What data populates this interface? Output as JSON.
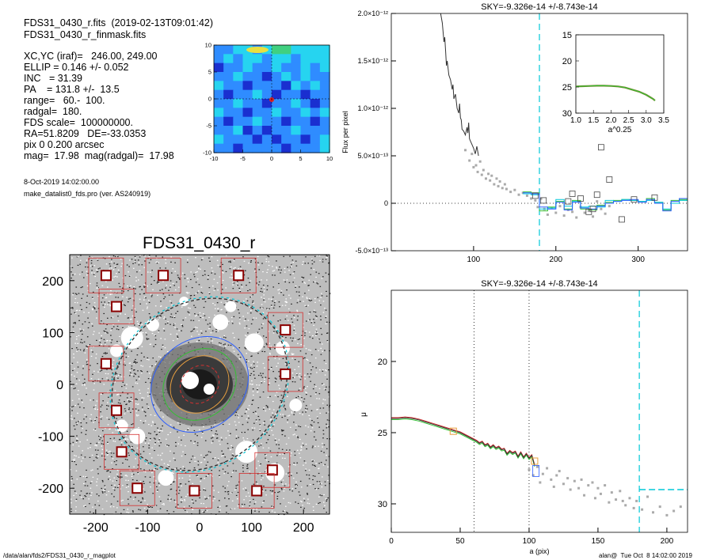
{
  "header": {
    "lines": [
      "FDS31_0430_r.fits  (2019-02-13T09:01:42)",
      "FDS31_0430_r_finmask.fits",
      "XC,YC (iraf)=   246.00, 249.00",
      "ELLIP = 0.146 +/- 0.052",
      "INC   = 31.39",
      "PA    = 131.8 +/-  13.5",
      "range=   60.-  100.",
      "radgal=  180.",
      "FDS scale=  100000000.",
      "RA=51.8209   DE=-33.0353",
      "pix 0 0.200 arcsec",
      "mag=  17.98  mag(radgal)=  17.98"
    ],
    "date": "8-Oct-2019 14:02:00.00",
    "program": "make_datalist0_fds.pro (ver. AS240919)"
  },
  "footer": {
    "path": "/data/alan/fds2/FDS31_0430_r_magplot",
    "stamp": "alan@  Tue Oct  8 14:02:00 2019"
  },
  "colors": {
    "dark_curve": "#333333",
    "cyan": "#00c8d8",
    "green": "#34c034",
    "blue": "#2a5cff",
    "orange": "#e8a040",
    "red": "#d43030",
    "gray_points": "#aaaaaa"
  },
  "chart_data": [
    {
      "id": "contour_map",
      "type": "heatmap",
      "title": "",
      "xlim": [
        -10,
        10
      ],
      "ylim": [
        -10,
        10
      ],
      "xticks": [
        "-10",
        "-5",
        "0",
        "5",
        "10"
      ],
      "yticks": [
        "-10",
        "-5",
        "0",
        "5",
        "10"
      ],
      "grid": [
        [
          1,
          1,
          2,
          2,
          1,
          2,
          3,
          3,
          2,
          2,
          2,
          2
        ],
        [
          1,
          2,
          1,
          2,
          2,
          1,
          2,
          2,
          1,
          2,
          2,
          2
        ],
        [
          0,
          1,
          1,
          2,
          1,
          1,
          2,
          1,
          1,
          2,
          1,
          2
        ],
        [
          1,
          1,
          2,
          1,
          1,
          0,
          1,
          2,
          1,
          2,
          1,
          1
        ],
        [
          2,
          1,
          1,
          0,
          1,
          1,
          1,
          0,
          2,
          1,
          2,
          1
        ],
        [
          1,
          0,
          1,
          1,
          2,
          1,
          0,
          1,
          1,
          0,
          1,
          1
        ],
        [
          1,
          1,
          2,
          1,
          1,
          0,
          1,
          1,
          2,
          1,
          0,
          1
        ],
        [
          2,
          1,
          1,
          0,
          1,
          1,
          2,
          1,
          1,
          2,
          1,
          2
        ],
        [
          1,
          0,
          1,
          1,
          2,
          1,
          1,
          0,
          1,
          1,
          0,
          1
        ],
        [
          1,
          1,
          2,
          0,
          1,
          0,
          1,
          1,
          2,
          1,
          1,
          1
        ],
        [
          2,
          1,
          1,
          1,
          0,
          1,
          0,
          1,
          1,
          0,
          1,
          2
        ],
        [
          1,
          1,
          0,
          1,
          1,
          1,
          1,
          0,
          1,
          1,
          1,
          2
        ]
      ]
    },
    {
      "id": "galaxy_image",
      "type": "image",
      "title": "FDS31_0430_r",
      "xlim": [
        -250,
        250
      ],
      "ylim": [
        -250,
        250
      ],
      "xticks": [
        "-200",
        "-100",
        "0",
        "100",
        "200"
      ],
      "yticks": [
        "-200",
        "-100",
        "0",
        "100",
        "200"
      ],
      "sky_boxes": [
        [
          -180,
          210
        ],
        [
          -70,
          210
        ],
        [
          75,
          210
        ],
        [
          -160,
          150
        ],
        [
          165,
          105
        ],
        [
          -180,
          40
        ],
        [
          165,
          20
        ],
        [
          -160,
          -50
        ],
        [
          -150,
          -130
        ],
        [
          140,
          -165
        ],
        [
          -120,
          -200
        ],
        [
          -10,
          -205
        ],
        [
          110,
          -205
        ]
      ],
      "ellipses_a": [
        40,
        60,
        75,
        100,
        180
      ],
      "ellipse_pa_deg": 131.8,
      "ellipse_ellip": 0.146
    },
    {
      "id": "sky_flux",
      "type": "line",
      "title": "SKY=-9.326e-14 +/-8.743e-14",
      "ylabel": "Flux per pixel",
      "xlabel": "",
      "xlim": [
        0,
        360
      ],
      "ylim": [
        -5e-13,
        2e-12
      ],
      "xticks": [
        100,
        200,
        300
      ],
      "yticks": [
        {
          "v": -5e-13,
          "label": "-5.0×10⁻¹³"
        },
        {
          "v": 0,
          "label": "0"
        },
        {
          "v": 5e-13,
          "label": "5.0×10⁻¹³"
        },
        {
          "v": 1e-12,
          "label": "1.0×10⁻¹²"
        },
        {
          "v": 1.5e-12,
          "label": "1.5×10⁻¹²"
        },
        {
          "v": 2e-12,
          "label": "2.0×10⁻¹²"
        }
      ],
      "vline_x": 180,
      "profile": {
        "x": [
          60,
          62,
          64,
          65,
          66,
          67,
          68,
          70,
          72,
          74,
          75,
          76,
          78,
          80,
          82,
          83,
          84,
          85,
          86,
          88,
          90,
          92,
          93,
          94,
          95,
          96,
          98,
          100,
          102,
          104,
          106
        ],
        "y": [
          2e-12,
          1.9e-12,
          1.7e-12,
          1.75e-12,
          1.6e-12,
          1.45e-12,
          1.5e-12,
          1.35e-12,
          1.3e-12,
          1.2e-12,
          1.25e-12,
          1.1e-12,
          1.15e-12,
          1e-12,
          9.5e-13,
          1.05e-12,
          9e-13,
          8.8e-13,
          7.8e-13,
          7.6e-13,
          7.2e-13,
          8e-13,
          7.4e-13,
          8.5e-13,
          6.8e-13,
          6.6e-13,
          6.2e-13,
          5.8e-13,
          5.2e-13,
          6e-13,
          5e-13
        ]
      },
      "scatter_gray": {
        "x": [
          90,
          95,
          98,
          100,
          103,
          105,
          108,
          110,
          112,
          115,
          118,
          120,
          122,
          125,
          128,
          130,
          132,
          135,
          138,
          140,
          145,
          150,
          155,
          160,
          165,
          170,
          175,
          178,
          182,
          186,
          190,
          195,
          200,
          205,
          210,
          215,
          220,
          225,
          230,
          235,
          240,
          245,
          250,
          255,
          260,
          265
        ],
        "y": [
          5.6e-13,
          4.5e-13,
          5.2e-13,
          3.8e-13,
          4e-13,
          3.3e-13,
          4.4e-13,
          3e-13,
          3.5e-13,
          2.6e-13,
          3.1e-13,
          2.4e-13,
          2.9e-13,
          2e-13,
          2.6e-13,
          1.8e-13,
          2.3e-13,
          1.6e-13,
          2e-13,
          1.5e-13,
          1.2e-13,
          1.4e-13,
          9e-14,
          1.1e-13,
          8e-14,
          5e-14,
          3e-14,
          -4e-14,
          5e-14,
          -6e-14,
          -1.2e-13,
          -5e-14,
          -1e-13,
          -3e-14,
          -1.3e-13,
          -7e-14,
          -9e-14,
          -1.5e-13,
          -4e-14,
          -1e-13,
          -8e-14,
          -1.4e-13,
          2e-14,
          -6e-14,
          -1.1e-13,
          -3e-14
        ]
      },
      "squares": {
        "x": [
          175,
          185,
          215,
          220,
          230,
          240,
          245,
          250,
          255,
          265,
          280,
          295,
          320
        ],
        "y": [
          8e-14,
          3e-14,
          2e-14,
          1e-13,
          5e-14,
          -9e-14,
          -6e-14,
          9e-14,
          5.9e-13,
          2.5e-13,
          -1.7e-13,
          4e-14,
          6e-14
        ]
      },
      "step_cyan": {
        "x": [
          160,
          170,
          180,
          190,
          200,
          210,
          220,
          230,
          240,
          250,
          260,
          270,
          280,
          290,
          300,
          310,
          320,
          330,
          340,
          350,
          360
        ],
        "y": [
          1e-13,
          9e-14,
          -6e-14,
          -5e-14,
          4e-14,
          -3e-14,
          2e-14,
          -4e-14,
          -3e-14,
          -4e-14,
          3e-14,
          2e-14,
          4e-14,
          3e-14,
          2e-14,
          3e-14,
          1e-14,
          -6e-14,
          0.0,
          3e-14,
          3e-14
        ]
      },
      "step_blue": {
        "x": [
          160,
          170,
          180,
          190,
          200,
          210,
          220,
          230,
          240,
          250,
          260,
          270,
          280,
          290,
          300,
          310,
          320,
          330,
          340,
          350,
          360
        ],
        "y": [
          1.1e-13,
          1e-13,
          -4e-14,
          -6e-14,
          1e-14,
          -7e-14,
          1e-14,
          -5e-14,
          -6e-14,
          -3e-14,
          0.0,
          2e-14,
          3e-14,
          4e-14,
          1e-14,
          4e-14,
          0.0,
          -8e-14,
          2e-14,
          5e-14,
          5e-14
        ]
      },
      "step_green": {
        "x": [
          160,
          170,
          180,
          190,
          200,
          210,
          220,
          230,
          240,
          250,
          260,
          270,
          280,
          290,
          300,
          310,
          320,
          330,
          340,
          350,
          360
        ],
        "y": [
          1.2e-13,
          1.1e-13,
          -8e-14,
          -4e-14,
          2e-14,
          -6e-14,
          3e-14,
          -6e-14,
          -7e-14,
          -2e-14,
          1e-14,
          3e-14,
          4e-14,
          3e-14,
          2e-14,
          5e-14,
          1e-14,
          -7e-14,
          3e-14,
          4e-14,
          4e-14
        ]
      }
    },
    {
      "id": "inset_growth",
      "type": "line",
      "xlabel": "a^0.25",
      "xlim": [
        1.0,
        3.5
      ],
      "ylim": [
        15,
        30
      ],
      "y_inverted": true,
      "xticks": [
        "1.0",
        "1.5",
        "2.0",
        "2.5",
        "3.0",
        "3.5"
      ],
      "yticks": [
        "15",
        "20",
        "25",
        "30"
      ],
      "x": [
        1.0,
        1.2,
        1.4,
        1.6,
        1.8,
        2.0,
        2.2,
        2.4,
        2.6,
        2.8,
        3.0,
        3.1,
        3.2,
        3.25
      ],
      "y": [
        24.9,
        24.85,
        24.8,
        24.75,
        24.75,
        24.8,
        24.9,
        25.1,
        25.5,
        25.9,
        26.5,
        26.9,
        27.3,
        27.6
      ]
    },
    {
      "id": "mu_profile",
      "type": "line",
      "title": "SKY=-9.326e-14 +/-8.743e-14",
      "ylabel": "μ",
      "xlabel": "a (pix)",
      "xlim": [
        0,
        215
      ],
      "ylim": [
        32,
        15
      ],
      "y_inverted": true,
      "xticks": [
        0,
        50,
        100,
        150,
        200
      ],
      "yticks": [
        20,
        25,
        30
      ],
      "vlines_dotted": [
        60,
        100
      ],
      "vline_cyan": 180,
      "sky_level_cyan": 29.0,
      "profile": {
        "x": [
          0,
          5,
          10,
          15,
          20,
          25,
          30,
          35,
          40,
          45,
          50,
          55,
          60,
          62,
          64,
          66,
          68,
          70,
          72,
          74,
          76,
          78,
          80,
          82,
          84,
          86,
          88,
          90,
          92,
          94,
          96,
          98,
          100,
          102,
          104
        ],
        "y": [
          24.0,
          24.0,
          23.95,
          24.0,
          24.1,
          24.25,
          24.4,
          24.55,
          24.7,
          24.85,
          25.0,
          25.25,
          25.5,
          25.6,
          25.75,
          25.65,
          25.9,
          25.8,
          26.05,
          25.9,
          26.1,
          26.0,
          26.2,
          26.15,
          26.5,
          26.3,
          26.45,
          26.35,
          26.7,
          26.4,
          26.75,
          26.5,
          26.8,
          26.6,
          27.3
        ]
      },
      "orange_boxes": {
        "x": [
          45,
          104
        ],
        "y": [
          24.9,
          27.0
        ]
      },
      "gray_points": {
        "x": [
          100,
          103,
          106,
          108,
          110,
          113,
          116,
          118,
          120,
          122,
          125,
          128,
          130,
          133,
          136,
          138,
          140,
          143,
          146,
          148,
          150,
          152,
          155,
          158,
          160,
          163,
          166,
          168,
          170,
          173,
          176,
          178,
          182,
          186,
          190,
          195,
          200,
          205,
          210
        ],
        "y": [
          27.6,
          28.0,
          27.4,
          28.5,
          27.9,
          27.5,
          28.3,
          28.8,
          28.0,
          27.7,
          28.6,
          28.2,
          29.0,
          28.4,
          28.9,
          28.3,
          29.4,
          28.7,
          28.5,
          29.6,
          28.9,
          29.3,
          28.7,
          29.9,
          29.2,
          29.7,
          29.1,
          29.8,
          30.1,
          29.6,
          30.3,
          29.8,
          30.4,
          29.5,
          30.6,
          30.2,
          30.8,
          30.5,
          30.2
        ]
      }
    }
  ]
}
